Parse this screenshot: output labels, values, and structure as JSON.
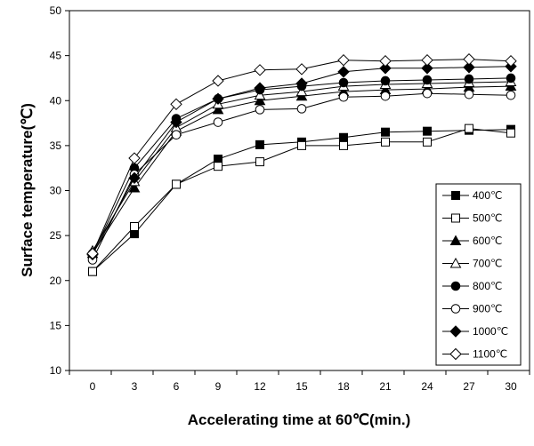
{
  "chart_data": {
    "type": "line",
    "title": "",
    "xlabel": "Accelerating time at 60℃(min.)",
    "ylabel": "Surface temperature(℃)",
    "x": [
      0,
      3,
      6,
      9,
      12,
      15,
      18,
      21,
      24,
      27,
      30
    ],
    "xticks": [
      "0",
      "3",
      "6",
      "9",
      "12",
      "15",
      "18",
      "21",
      "24",
      "27",
      "30"
    ],
    "ylim": [
      10,
      50
    ],
    "yticks": [
      "10",
      "15",
      "20",
      "25",
      "30",
      "35",
      "40",
      "45",
      "50"
    ],
    "grid": false,
    "legend_position": "right",
    "series": [
      {
        "name": "400℃",
        "marker": "square-filled",
        "values": [
          21.0,
          25.2,
          30.7,
          33.5,
          35.1,
          35.4,
          35.9,
          36.5,
          36.6,
          36.7,
          36.8
        ]
      },
      {
        "name": "500℃",
        "marker": "square-open",
        "values": [
          21.0,
          26.0,
          30.7,
          32.7,
          33.2,
          35.0,
          35.0,
          35.4,
          35.4,
          36.9,
          36.4
        ]
      },
      {
        "name": "600℃",
        "marker": "triangle-filled",
        "values": [
          23.0,
          30.3,
          36.6,
          39.0,
          40.0,
          40.5,
          41.0,
          41.2,
          41.3,
          41.5,
          41.6
        ]
      },
      {
        "name": "700℃",
        "marker": "triangle-open",
        "values": [
          23.3,
          31.0,
          37.0,
          39.6,
          40.6,
          41.0,
          41.6,
          41.8,
          41.9,
          42.0,
          42.1
        ]
      },
      {
        "name": "800℃",
        "marker": "circle-filled",
        "values": [
          23.0,
          32.5,
          38.0,
          40.2,
          41.2,
          41.6,
          42.0,
          42.2,
          42.3,
          42.4,
          42.5
        ]
      },
      {
        "name": "900℃",
        "marker": "circle-open",
        "values": [
          22.3,
          31.8,
          36.2,
          37.6,
          39.0,
          39.1,
          40.4,
          40.5,
          40.8,
          40.7,
          40.6
        ]
      },
      {
        "name": "1000℃",
        "marker": "diamond-filled",
        "values": [
          22.9,
          31.4,
          37.6,
          40.2,
          41.4,
          41.9,
          43.2,
          43.6,
          43.6,
          43.7,
          43.8
        ]
      },
      {
        "name": "1100℃",
        "marker": "diamond-open",
        "values": [
          23.0,
          33.6,
          39.6,
          42.2,
          43.4,
          43.5,
          44.5,
          44.4,
          44.5,
          44.6,
          44.4
        ]
      }
    ]
  }
}
